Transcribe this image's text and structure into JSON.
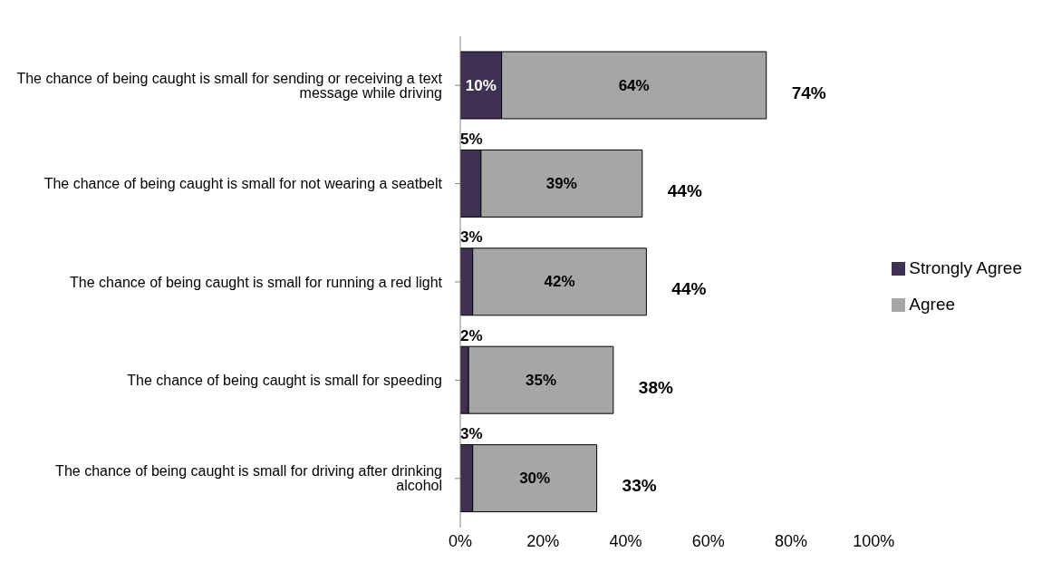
{
  "chart_data": {
    "type": "bar",
    "orientation": "horizontal",
    "stacked": true,
    "categories": [
      "The chance of being caught is small for sending or receiving a text message while driving",
      "The chance of being caught is small for not wearing a seatbelt",
      "The chance of being caught is small for running a red light",
      "The chance of being caught is small for speeding",
      "The chance of being caught is small for driving after drinking alcohol"
    ],
    "series": [
      {
        "name": "Strongly Agree",
        "color": "#3f3151",
        "values": [
          10,
          5,
          3,
          2,
          3
        ],
        "value_labels": [
          "10%",
          "5%",
          "3%",
          "2%",
          "3%"
        ]
      },
      {
        "name": "Agree",
        "color": "#a6a6a6",
        "values": [
          64,
          39,
          42,
          35,
          30
        ],
        "value_labels": [
          "64%",
          "39%",
          "42%",
          "35%",
          "30%"
        ]
      }
    ],
    "totals": [
      "74%",
      "44%",
      "44%",
      "38%",
      "33%"
    ],
    "xlim": [
      0,
      100
    ],
    "xticks": [
      {
        "value": 0,
        "label": "0%"
      },
      {
        "value": 20,
        "label": "20%"
      },
      {
        "value": 40,
        "label": "40%"
      },
      {
        "value": 60,
        "label": "60%"
      },
      {
        "value": 80,
        "label": "80%"
      },
      {
        "value": 100,
        "label": "100%"
      }
    ],
    "grid": false,
    "legend": "right"
  }
}
